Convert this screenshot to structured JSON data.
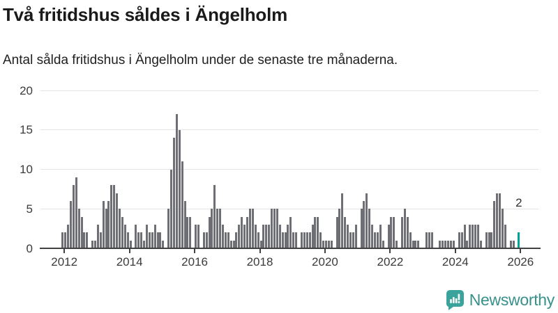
{
  "header": {
    "title": "Två fritidshus såldes i Ängelholm",
    "subtitle": "Antal sålda fritidshus i Ängelholm under de senaste tre månaderna."
  },
  "chart_data": {
    "type": "bar",
    "title": "Två fritidshus såldes i Ängelholm",
    "subtitle": "Antal sålda fritidshus i Ängelholm under de senaste tre månaderna.",
    "xlabel": "",
    "ylabel": "",
    "ylim": [
      0,
      20
    ],
    "grid": true,
    "start_month": "2011-12",
    "end_month": "2025-12",
    "values": [
      2,
      2,
      3,
      6,
      8,
      9,
      5,
      4,
      2,
      2,
      0,
      1,
      1,
      3,
      2,
      6,
      5,
      6,
      8,
      8,
      7,
      5,
      4,
      3,
      2,
      1,
      0,
      3,
      2,
      2,
      1,
      3,
      2,
      2,
      3,
      2,
      2,
      1,
      0,
      5,
      10,
      14,
      17,
      15,
      11,
      6,
      4,
      4,
      0,
      3,
      3,
      0,
      2,
      2,
      4,
      5,
      8,
      5,
      5,
      3,
      2,
      2,
      1,
      1,
      2,
      3,
      4,
      3,
      4,
      5,
      5,
      3,
      2,
      1,
      3,
      3,
      3,
      5,
      5,
      5,
      3,
      2,
      2,
      3,
      4,
      2,
      2,
      0,
      2,
      2,
      2,
      2,
      3,
      4,
      4,
      2,
      1,
      1,
      1,
      1,
      0,
      4,
      5,
      7,
      4,
      3,
      2,
      2,
      3,
      0,
      5,
      6,
      7,
      5,
      3,
      2,
      2,
      3,
      1,
      0,
      3,
      4,
      4,
      1,
      0,
      4,
      5,
      4,
      2,
      1,
      1,
      1,
      0,
      0,
      2,
      2,
      2,
      0,
      0,
      1,
      1,
      1,
      1,
      1,
      1,
      0,
      2,
      2,
      3,
      1,
      3,
      3,
      3,
      3,
      1,
      0,
      2,
      2,
      2,
      6,
      7,
      7,
      5,
      3,
      0,
      1,
      1,
      0,
      2
    ],
    "y_ticks": [
      0,
      5,
      10,
      15,
      20
    ],
    "x_tick_years": [
      "2012",
      "2014",
      "2016",
      "2018",
      "2020",
      "2022",
      "2024",
      "2026"
    ],
    "bar_color": "#6e6e75",
    "highlight_color": "#00a29b",
    "highlight_index": 168,
    "annotation": {
      "text": "2",
      "value": 2
    },
    "legend": null
  },
  "footer": {
    "brand": "Newsworthy",
    "brand_color": "#38908b",
    "logo_color": "#3aa39c"
  }
}
